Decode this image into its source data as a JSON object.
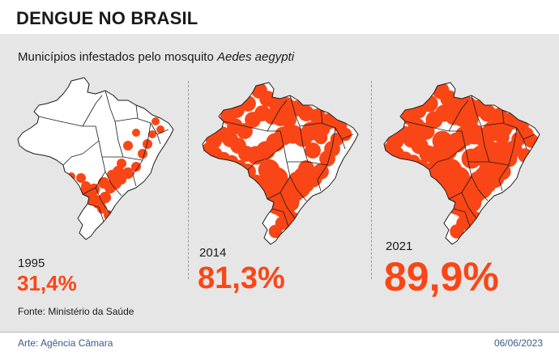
{
  "title": "DENGUE NO BRASIL",
  "subtitle": {
    "text": "Municípios infestados pelo mosquito ",
    "species": "Aedes aegypti"
  },
  "maps": [
    {
      "year": "1995",
      "percentage": "31,4%",
      "coverage": 0.314
    },
    {
      "year": "2014",
      "percentage": "81,3%",
      "coverage": 0.813
    },
    {
      "year": "2021",
      "percentage": "89,9%",
      "coverage": 0.899
    }
  ],
  "source": "Fonte: Ministério da Saúde",
  "footer": {
    "credit": "Arte: Agência Câmara",
    "date": "06/06/2023"
  },
  "colors": {
    "infested": "#fa4616",
    "uninfested": "#ffffff",
    "borders": "#1a1a1a",
    "panel": "#e6e6e6"
  }
}
